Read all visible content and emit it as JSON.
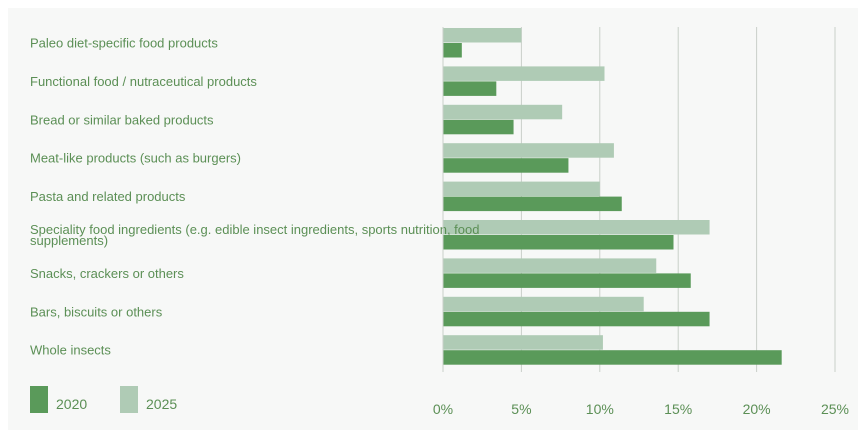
{
  "chart_data": {
    "type": "bar",
    "orientation": "horizontal",
    "categories": [
      [
        "Paleo diet-specific food products"
      ],
      [
        "Functional food / nutraceutical products"
      ],
      [
        "Bread or similar baked products"
      ],
      [
        "Meat-like products (such as burgers)"
      ],
      [
        "Pasta and related products"
      ],
      [
        "Speciality food ingredients (e.g. edible insect ingredients, sports nutrition, food",
        "supplements)"
      ],
      [
        "Snacks, crackers or others"
      ],
      [
        "Bars, biscuits or others"
      ],
      [
        "Whole insects"
      ]
    ],
    "series": [
      {
        "name": "2020",
        "color": "#5a9a5a",
        "values": [
          1.2,
          3.4,
          4.5,
          8.0,
          11.4,
          14.7,
          15.8,
          17.0,
          21.6
        ]
      },
      {
        "name": "2025",
        "color": "#afcbb5",
        "values": [
          5.0,
          10.3,
          7.6,
          10.9,
          10.0,
          17.0,
          13.6,
          12.8,
          10.2
        ]
      }
    ],
    "x_ticks": [
      "0%",
      "5%",
      "10%",
      "15%",
      "20%",
      "25%"
    ],
    "xlim": [
      0,
      25
    ],
    "grid": true,
    "legend_position": "bottom-left"
  }
}
